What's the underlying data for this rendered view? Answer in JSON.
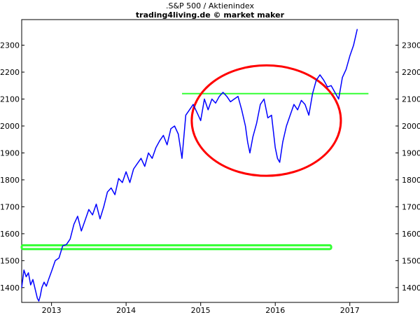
{
  "page": {
    "title_line1": ".S&P 500 / Aktienindex",
    "title_line2": "trading4living.de © market maker"
  },
  "chart_data": {
    "type": "line",
    "title": ".S&P 500 / Aktienindex",
    "subtitle": "trading4living.de © market maker",
    "xlabel": "",
    "ylabel": "",
    "x_range": [
      2012.6,
      2017.65
    ],
    "ylim": [
      1345,
      2395
    ],
    "x_ticks": [
      {
        "value": 2013,
        "label": "2013"
      },
      {
        "value": 2014,
        "label": "2014"
      },
      {
        "value": 2015,
        "label": "2015"
      },
      {
        "value": 2016,
        "label": "2016"
      },
      {
        "value": 2017,
        "label": "2017"
      }
    ],
    "y_ticks": [
      1400,
      1500,
      1600,
      1700,
      1800,
      1900,
      2000,
      2100,
      2200,
      2300
    ],
    "grid": false,
    "axis_labels_both_sides": true,
    "series": [
      {
        "color": "#0000ff",
        "x": [
          2012.6,
          2012.63,
          2012.66,
          2012.69,
          2012.72,
          2012.75,
          2012.78,
          2012.81,
          2012.83,
          2012.85,
          2012.87,
          2012.9,
          2012.93,
          2012.96,
          2013.0,
          2013.05,
          2013.1,
          2013.15,
          2013.2,
          2013.25,
          2013.3,
          2013.35,
          2013.4,
          2013.45,
          2013.5,
          2013.55,
          2013.6,
          2013.65,
          2013.7,
          2013.75,
          2013.8,
          2013.85,
          2013.9,
          2013.95,
          2014.0,
          2014.05,
          2014.1,
          2014.15,
          2014.2,
          2014.25,
          2014.3,
          2014.35,
          2014.4,
          2014.45,
          2014.5,
          2014.55,
          2014.6,
          2014.65,
          2014.7,
          2014.75,
          2014.8,
          2014.85,
          2014.9,
          2014.95,
          2015.0,
          2015.05,
          2015.1,
          2015.15,
          2015.2,
          2015.25,
          2015.3,
          2015.35,
          2015.4,
          2015.45,
          2015.5,
          2015.55,
          2015.6,
          2015.63,
          2015.66,
          2015.7,
          2015.75,
          2015.8,
          2015.85,
          2015.9,
          2015.95,
          2016.0,
          2016.03,
          2016.06,
          2016.1,
          2016.15,
          2016.2,
          2016.25,
          2016.3,
          2016.35,
          2016.4,
          2016.45,
          2016.5,
          2016.55,
          2016.6,
          2016.65,
          2016.7,
          2016.75,
          2016.8,
          2016.85,
          2016.9,
          2016.95,
          2017.0,
          2017.05,
          2017.1
        ],
        "y": [
          1400,
          1465,
          1440,
          1455,
          1410,
          1430,
          1395,
          1360,
          1350,
          1370,
          1400,
          1420,
          1405,
          1430,
          1460,
          1500,
          1510,
          1555,
          1560,
          1580,
          1635,
          1665,
          1610,
          1650,
          1690,
          1670,
          1710,
          1655,
          1700,
          1755,
          1770,
          1745,
          1805,
          1790,
          1830,
          1790,
          1840,
          1860,
          1880,
          1850,
          1900,
          1880,
          1920,
          1945,
          1965,
          1930,
          1990,
          2000,
          1970,
          1880,
          2040,
          2060,
          2080,
          2050,
          2020,
          2100,
          2060,
          2100,
          2085,
          2110,
          2125,
          2110,
          2090,
          2100,
          2110,
          2060,
          2000,
          1940,
          1900,
          1960,
          2010,
          2080,
          2100,
          2030,
          2040,
          1920,
          1880,
          1865,
          1940,
          2000,
          2040,
          2080,
          2060,
          2095,
          2080,
          2040,
          2120,
          2170,
          2190,
          2170,
          2145,
          2150,
          2125,
          2100,
          2180,
          2210,
          2260,
          2300,
          2360
        ]
      }
    ],
    "annotations": [
      {
        "type": "horizontal_line",
        "color": "#33ff33",
        "y": 2120,
        "x_start": 2014.75,
        "x_end": 2017.25
      },
      {
        "type": "ellipse",
        "color": "#ff0000",
        "cx": 2015.88,
        "cy": 2020,
        "rx_years": 1.0,
        "ry_value": 205
      },
      {
        "type": "band",
        "color": "#33ff33",
        "x_start": 2012.6,
        "x_end": 2016.75,
        "y_top": 1557,
        "y_bottom": 1543
      }
    ]
  }
}
